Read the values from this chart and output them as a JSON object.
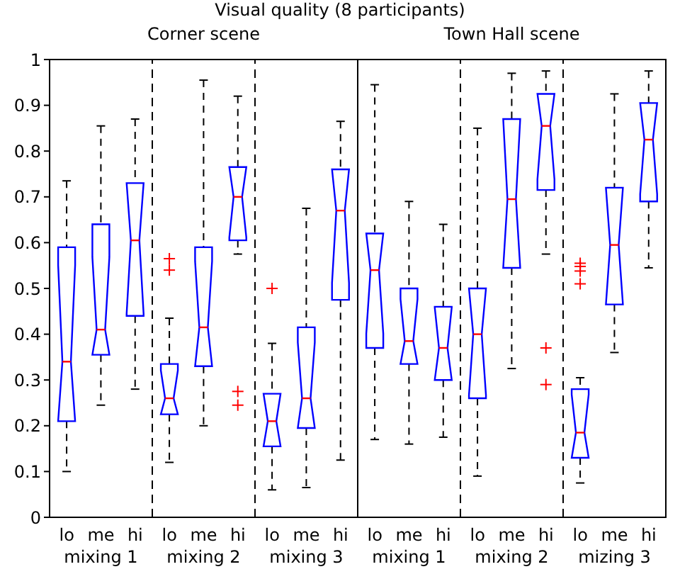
{
  "chart_data": {
    "type": "box",
    "title": "Visual quality (8 participants)",
    "categories": [
      "lo",
      "me",
      "hi",
      "lo",
      "me",
      "hi",
      "lo",
      "me",
      "hi",
      "lo",
      "me",
      "hi",
      "lo",
      "me",
      "hi",
      "lo",
      "me",
      "hi"
    ],
    "annotations": [
      "Corner scene",
      "Town Hall scene",
      "mixing 1",
      "mixing 2",
      "mixing 3",
      "mixing 1",
      "mixing 2",
      "mizing 3"
    ],
    "ylim": [
      0,
      1
    ],
    "yticks": [
      0,
      0.1,
      0.2,
      0.3,
      0.4,
      0.5,
      0.6,
      0.7,
      0.8,
      0.9,
      1
    ],
    "series": [
      {
        "color": "#0000ff",
        "boxes": [
          {
            "low": 0.1,
            "q1": 0.21,
            "median": 0.34,
            "q3": 0.59,
            "high": 0.735
          },
          {
            "low": 0.245,
            "q1": 0.355,
            "median": 0.41,
            "q3": 0.64,
            "high": 0.855
          },
          {
            "low": 0.28,
            "q1": 0.44,
            "median": 0.605,
            "q3": 0.73,
            "high": 0.87
          },
          {
            "low": 0.12,
            "q1": 0.225,
            "median": 0.26,
            "q3": 0.335,
            "high": 0.435,
            "outliers": [
              0.565,
              0.54
            ]
          },
          {
            "low": 0.2,
            "q1": 0.33,
            "median": 0.415,
            "q3": 0.59,
            "high": 0.955
          },
          {
            "low": 0.575,
            "q1": 0.605,
            "median": 0.7,
            "q3": 0.765,
            "high": 0.92,
            "outliers": [
              0.275,
              0.245
            ]
          },
          {
            "low": 0.06,
            "q1": 0.155,
            "median": 0.21,
            "q3": 0.27,
            "high": 0.38,
            "outliers": [
              0.5
            ]
          },
          {
            "low": 0.065,
            "q1": 0.195,
            "median": 0.26,
            "q3": 0.415,
            "high": 0.675
          },
          {
            "low": 0.125,
            "q1": 0.475,
            "median": 0.67,
            "q3": 0.76,
            "high": 0.865
          },
          {
            "low": 0.17,
            "q1": 0.37,
            "median": 0.54,
            "q3": 0.62,
            "high": 0.945
          },
          {
            "low": 0.16,
            "q1": 0.335,
            "median": 0.385,
            "q3": 0.5,
            "high": 0.69
          },
          {
            "low": 0.175,
            "q1": 0.3,
            "median": 0.37,
            "q3": 0.46,
            "high": 0.64
          },
          {
            "low": 0.09,
            "q1": 0.26,
            "median": 0.4,
            "q3": 0.5,
            "high": 0.85
          },
          {
            "low": 0.325,
            "q1": 0.545,
            "median": 0.695,
            "q3": 0.87,
            "high": 0.97
          },
          {
            "low": 0.575,
            "q1": 0.715,
            "median": 0.855,
            "q3": 0.925,
            "high": 0.975,
            "outliers": [
              0.37,
              0.29
            ]
          },
          {
            "low": 0.075,
            "q1": 0.13,
            "median": 0.185,
            "q3": 0.28,
            "high": 0.305,
            "outliers": [
              0.555,
              0.548,
              0.538,
              0.51
            ]
          },
          {
            "low": 0.36,
            "q1": 0.465,
            "median": 0.595,
            "q3": 0.72,
            "high": 0.925
          },
          {
            "low": 0.545,
            "q1": 0.69,
            "median": 0.825,
            "q3": 0.905,
            "high": 0.975
          }
        ]
      }
    ]
  }
}
